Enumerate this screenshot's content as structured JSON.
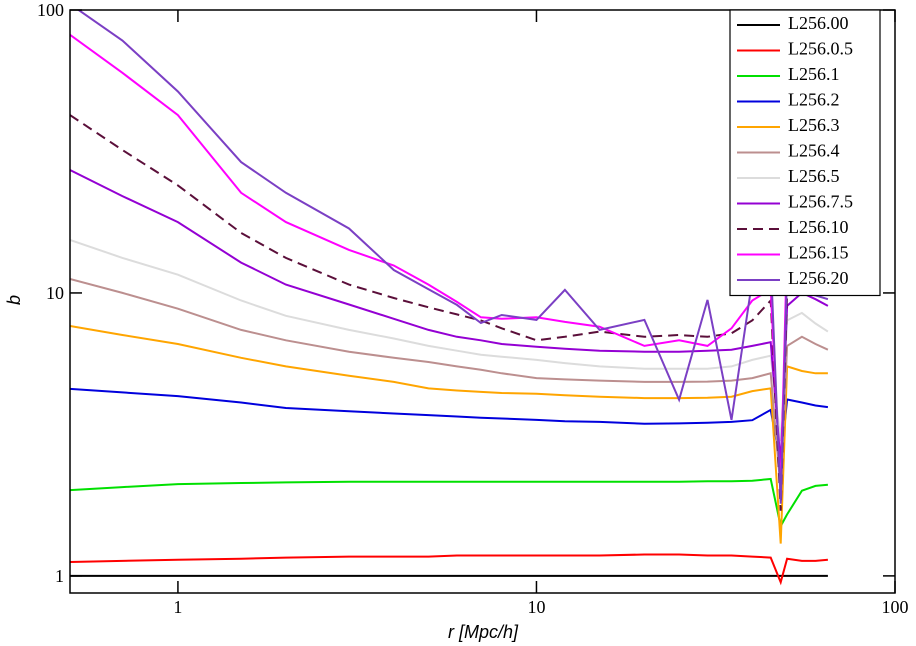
{
  "chart_data": {
    "type": "line",
    "xlabel": "r [Mpc/h]",
    "ylabel": "b",
    "xscale": "log",
    "yscale": "log",
    "xlim": [
      0.5,
      100
    ],
    "ylim": [
      0.87,
      100
    ],
    "xticks": [
      1,
      10,
      100
    ],
    "yticks": [
      1,
      10,
      100
    ],
    "legend": "upper right",
    "x": [
      0.5,
      0.7,
      1,
      1.5,
      2,
      3,
      4,
      5,
      6,
      7,
      8,
      10,
      12,
      15,
      20,
      25,
      30,
      35,
      40,
      45,
      48,
      50,
      55,
      60,
      65
    ],
    "series": [
      {
        "name": "L256.00",
        "color": "#000000",
        "values": [
          1,
          1,
          1,
          1,
          1,
          1,
          1,
          1,
          1,
          1,
          1,
          1,
          1,
          1,
          1,
          1,
          1,
          1,
          1,
          1,
          1,
          1,
          1,
          1,
          1
        ]
      },
      {
        "name": "L256.0.5",
        "color": "#ff0000",
        "values": [
          1.12,
          1.13,
          1.14,
          1.15,
          1.16,
          1.17,
          1.17,
          1.17,
          1.18,
          1.18,
          1.18,
          1.18,
          1.18,
          1.18,
          1.19,
          1.19,
          1.18,
          1.18,
          1.17,
          1.16,
          0.95,
          1.15,
          1.13,
          1.13,
          1.14
        ]
      },
      {
        "name": "L256.1",
        "color": "#00e000",
        "values": [
          2.01,
          2.06,
          2.11,
          2.13,
          2.14,
          2.15,
          2.15,
          2.15,
          2.15,
          2.15,
          2.15,
          2.15,
          2.15,
          2.15,
          2.15,
          2.15,
          2.16,
          2.16,
          2.17,
          2.2,
          1.5,
          1.65,
          2.0,
          2.08,
          2.1
        ]
      },
      {
        "name": "L256.2",
        "color": "#0000dd",
        "values": [
          4.58,
          4.45,
          4.32,
          4.1,
          3.92,
          3.82,
          3.75,
          3.7,
          3.66,
          3.62,
          3.6,
          3.56,
          3.52,
          3.5,
          3.45,
          3.46,
          3.48,
          3.5,
          3.55,
          3.86,
          2.5,
          4.2,
          4.1,
          4.0,
          3.95
        ]
      },
      {
        "name": "L256.3",
        "color": "#ffa500",
        "values": [
          7.64,
          7.1,
          6.6,
          5.9,
          5.5,
          5.1,
          4.85,
          4.6,
          4.52,
          4.47,
          4.43,
          4.4,
          4.35,
          4.3,
          4.25,
          4.25,
          4.26,
          4.3,
          4.5,
          4.6,
          1.3,
          5.5,
          5.3,
          5.2,
          5.2
        ]
      },
      {
        "name": "L256.4",
        "color": "#bc8f8f",
        "values": [
          11.2,
          10.0,
          8.8,
          7.4,
          6.8,
          6.2,
          5.9,
          5.7,
          5.5,
          5.35,
          5.2,
          5.0,
          4.95,
          4.9,
          4.85,
          4.85,
          4.86,
          4.9,
          5.0,
          5.2,
          2.0,
          6.5,
          7.0,
          6.6,
          6.3
        ]
      },
      {
        "name": "L256.5",
        "color": "#dcdcdc",
        "values": [
          15.4,
          13.3,
          11.6,
          9.4,
          8.3,
          7.4,
          6.9,
          6.5,
          6.25,
          6.05,
          5.95,
          5.8,
          5.65,
          5.5,
          5.4,
          5.4,
          5.4,
          5.5,
          5.8,
          6.0,
          3.0,
          8.0,
          8.5,
          7.8,
          7.3
        ]
      },
      {
        "name": "L256.7.5",
        "color": "#9400d3",
        "values": [
          27.2,
          22,
          17.8,
          12.8,
          10.7,
          9.1,
          8.1,
          7.4,
          7.0,
          6.8,
          6.6,
          6.45,
          6.35,
          6.25,
          6.2,
          6.2,
          6.25,
          6.3,
          6.5,
          6.7,
          2.5,
          9.0,
          10.0,
          9.5,
          9.0
        ]
      },
      {
        "name": "L256.10",
        "color": "#5b0f3a",
        "dashed": true,
        "values": [
          42.5,
          32,
          24,
          16.3,
          13.3,
          10.7,
          9.6,
          8.9,
          8.4,
          8.0,
          7.5,
          6.8,
          7.0,
          7.3,
          7.0,
          7.1,
          7.0,
          7.2,
          8.0,
          9.4,
          1.7,
          10,
          11,
          10.5,
          10
        ]
      },
      {
        "name": "L256.15",
        "color": "#ff00ff",
        "values": [
          81.7,
          60,
          42.5,
          22.6,
          17.8,
          14.2,
          12.5,
          10.7,
          9.3,
          8.2,
          8.1,
          8.2,
          7.9,
          7.6,
          6.5,
          6.8,
          6.5,
          7.5,
          9.4,
          10.3,
          2.0,
          15,
          12,
          11,
          10
        ]
      },
      {
        "name": "L256.20",
        "color": "#7b3fc4",
        "values": [
          105,
          78,
          51.5,
          29,
          22.6,
          16.9,
          12.05,
          10.3,
          9.07,
          7.83,
          8.36,
          8.03,
          10.25,
          7.4,
          8.03,
          4.19,
          9.45,
          3.56,
          11.1,
          13.1,
          1.8,
          12,
          10,
          9.8,
          9.5
        ]
      }
    ]
  }
}
